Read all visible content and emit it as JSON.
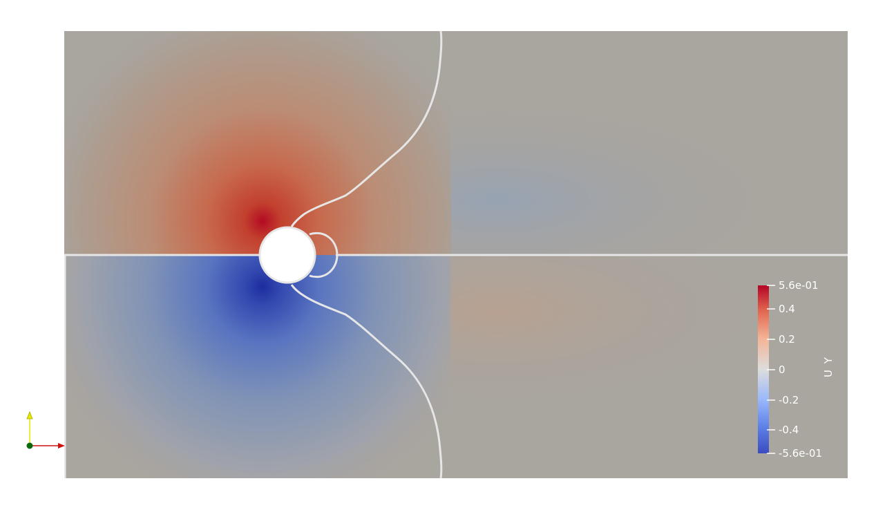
{
  "colorbar": {
    "title": "U Y",
    "range": [
      -0.56,
      0.56
    ],
    "labels": {
      "max": "5.6e-01",
      "p04": "0.4",
      "p02": "0.2",
      "zero": "0",
      "n02": "-0.2",
      "n04": "-0.4",
      "min": "-5.6e-01"
    }
  },
  "colors": {
    "field_background": "#a9a59f",
    "contour_line": "#e6e6e6",
    "colormap_high": "#b40426",
    "colormap_mid": "#dddddd",
    "colormap_low": "#3b4cc0",
    "axis_x": "#cc1111",
    "axis_y": "#e8e800",
    "axis_origin": "#0a6a0a"
  },
  "orientation_axes": {
    "x_icon": "x-axis-arrow-icon",
    "y_icon": "y-axis-arrow-icon",
    "origin_icon": "origin-dot-icon"
  }
}
